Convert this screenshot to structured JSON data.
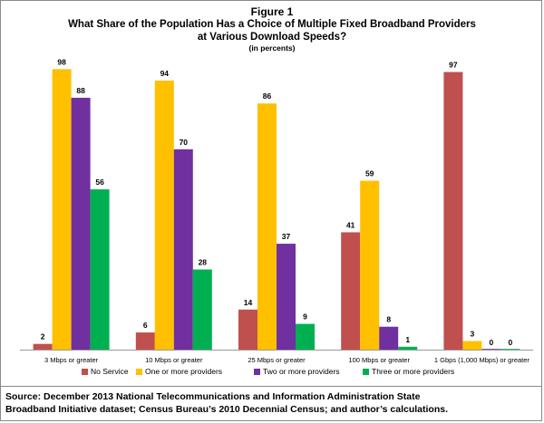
{
  "figure_label": "Figure 1",
  "chart_data": {
    "type": "bar",
    "title": "What Share of the Population Has a Choice of Multiple Fixed Broadband Providers at Various Download Speeds?",
    "title_lines": [
      "What Share of the Population Has a Choice of Multiple Fixed Broadband Providers",
      "at Various Download Speeds?"
    ],
    "subtitle": "(in percents)",
    "xlabel": "",
    "ylabel": "",
    "ylim": [
      0,
      100
    ],
    "grid": false,
    "legend_position": "bottom",
    "categories": [
      "3 Mbps or greater",
      "10 Mbps or greater",
      "25 Mbps or greater",
      "100 Mbps or greater",
      "1 Gbps (1,000 Mbps) or greater"
    ],
    "series": [
      {
        "name": "No Service",
        "color": "#c0504d",
        "values": [
          2,
          6,
          14,
          41,
          97
        ]
      },
      {
        "name": "One or more providers",
        "color": "#ffc000",
        "values": [
          98,
          94,
          86,
          59,
          3
        ]
      },
      {
        "name": "Two or more providers",
        "color": "#7030a0",
        "values": [
          88,
          70,
          37,
          8,
          0
        ]
      },
      {
        "name": "Three or more providers",
        "color": "#00b050",
        "values": [
          56,
          28,
          9,
          1,
          0
        ]
      }
    ]
  },
  "source_note": {
    "line1": "Source:  December 2013 National Telecommunications and Information Administration State",
    "line2": "Broadband Initiative dataset; Census Bureau’s 2010 Decennial Census; and author’s calculations."
  }
}
